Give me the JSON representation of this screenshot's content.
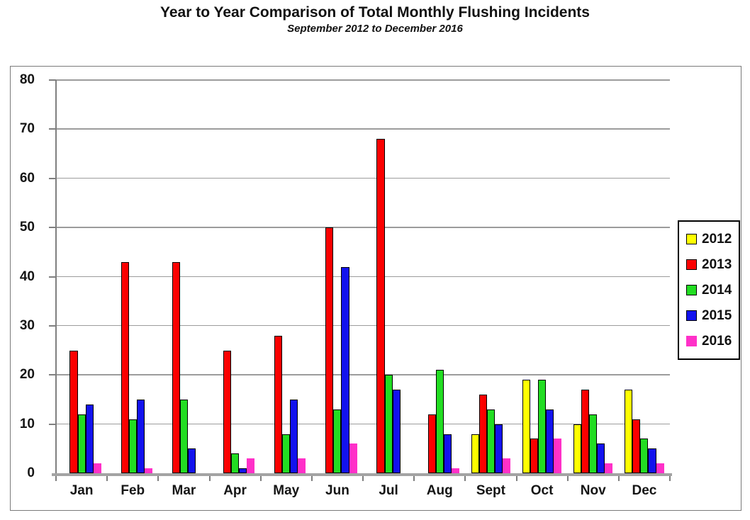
{
  "header": {
    "title": "Year to Year Comparison of Total Monthly Flushing Incidents",
    "subtitle": "September 2012 to December 2016"
  },
  "chart_data": {
    "type": "bar",
    "title": "Year to Year Comparison of Total Monthly Flushing Incidents",
    "subtitle": "September 2012 to December 2016",
    "categories": [
      "Jan",
      "Feb",
      "Mar",
      "Apr",
      "May",
      "Jun",
      "Jul",
      "Aug",
      "Sept",
      "Oct",
      "Nov",
      "Dec"
    ],
    "series": [
      {
        "name": "2012",
        "color": "#FFFF00",
        "outlined": true,
        "values": [
          null,
          null,
          null,
          null,
          null,
          null,
          null,
          null,
          8,
          19,
          10,
          17
        ]
      },
      {
        "name": "2013",
        "color": "#FB0000",
        "outlined": true,
        "values": [
          25,
          43,
          43,
          25,
          28,
          50,
          68,
          12,
          16,
          7,
          17,
          11
        ]
      },
      {
        "name": "2014",
        "color": "#22DD22",
        "outlined": true,
        "values": [
          12,
          11,
          15,
          4,
          8,
          13,
          20,
          21,
          13,
          19,
          12,
          7
        ]
      },
      {
        "name": "2015",
        "color": "#1212EE",
        "outlined": true,
        "values": [
          14,
          15,
          5,
          1,
          15,
          42,
          17,
          8,
          10,
          13,
          6,
          5
        ]
      },
      {
        "name": "2016",
        "color": "#FF30C8",
        "outlined": false,
        "values": [
          2,
          1,
          0,
          3,
          3,
          6,
          0,
          1,
          3,
          7,
          2,
          2
        ]
      }
    ],
    "ylim": [
      0,
      80
    ],
    "yticks": [
      0,
      10,
      20,
      30,
      40,
      50,
      60,
      70,
      80
    ],
    "grid": true,
    "legend_position": "right",
    "legend_labels": [
      "2012",
      "2013",
      "2014",
      "2015",
      "2016"
    ]
  },
  "colors": {
    "gridline": "#9c9c9c",
    "y_axis_line": "#7f7f7f",
    "x_axis_line": "#a3a3a3",
    "frame_border": "#7a7a7a",
    "bar_outline": "#000000",
    "text": "#111111"
  }
}
